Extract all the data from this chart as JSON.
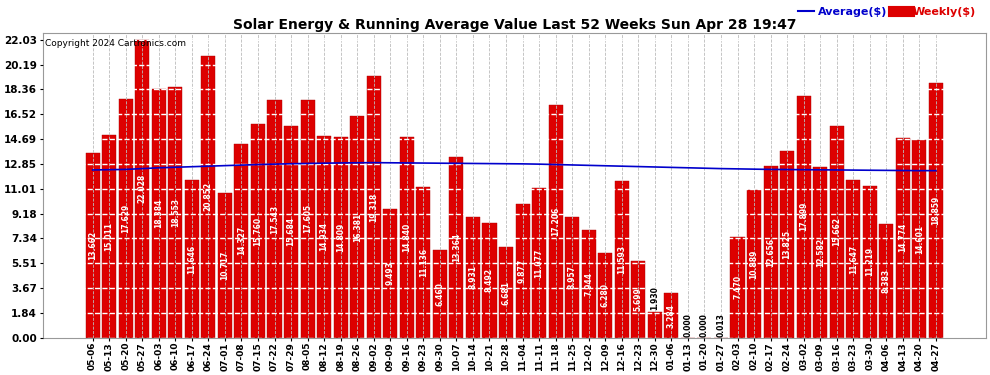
{
  "title": "Solar Energy & Running Average Value Last 52 Weeks Sun Apr 28 19:47",
  "copyright": "Copyright 2024 Cartronics.com",
  "legend_avg": "Average($)",
  "legend_weekly": "Weekly($)",
  "bar_color": "#dd0000",
  "avg_line_color": "#0000cc",
  "background_color": "#ffffff",
  "grid_color": "#bbbbbb",
  "yticks": [
    0.0,
    1.84,
    3.67,
    5.51,
    7.34,
    9.18,
    11.01,
    12.85,
    14.69,
    16.52,
    18.36,
    20.19,
    22.03
  ],
  "ylim": [
    0,
    22.5
  ],
  "dates": [
    "05-06",
    "05-13",
    "05-20",
    "05-27",
    "06-03",
    "06-10",
    "06-17",
    "06-24",
    "07-01",
    "07-08",
    "07-15",
    "07-22",
    "07-29",
    "08-05",
    "08-12",
    "08-19",
    "08-26",
    "09-02",
    "09-09",
    "09-16",
    "09-23",
    "09-30",
    "10-07",
    "10-14",
    "10-21",
    "10-28",
    "11-04",
    "11-11",
    "11-18",
    "11-25",
    "12-02",
    "12-09",
    "12-16",
    "12-23",
    "12-30",
    "01-06",
    "01-13",
    "01-20",
    "01-27",
    "02-03",
    "02-10",
    "02-17",
    "02-24",
    "03-02",
    "03-09",
    "03-16",
    "03-23",
    "03-30",
    "04-06",
    "04-13",
    "04-20",
    "04-27"
  ],
  "weekly_values": [
    13.662,
    15.011,
    17.629,
    22.028,
    18.384,
    18.553,
    11.646,
    20.852,
    10.717,
    14.327,
    15.76,
    17.543,
    15.684,
    17.605,
    14.934,
    14.809,
    16.381,
    19.318,
    9.493,
    14.84,
    11.136,
    6.46,
    13.364,
    8.931,
    8.492,
    6.681,
    9.877,
    11.077,
    17.206,
    8.957,
    7.944,
    6.28,
    11.593,
    5.699,
    1.93,
    3.284,
    0.0,
    0.0,
    0.013,
    7.47,
    10.889,
    12.656,
    13.825,
    17.899,
    12.582,
    15.662,
    11.647,
    11.219,
    8.383,
    14.774,
    14.601,
    18.859
  ],
  "avg_values": [
    12.4,
    12.42,
    12.44,
    12.5,
    12.56,
    12.6,
    12.64,
    12.68,
    12.72,
    12.76,
    12.8,
    12.83,
    12.86,
    12.88,
    12.9,
    12.92,
    12.93,
    12.94,
    12.93,
    12.92,
    12.91,
    12.9,
    12.89,
    12.88,
    12.87,
    12.86,
    12.85,
    12.83,
    12.8,
    12.77,
    12.74,
    12.71,
    12.68,
    12.65,
    12.62,
    12.59,
    12.56,
    12.53,
    12.5,
    12.48,
    12.46,
    12.44,
    12.43,
    12.42,
    12.41,
    12.4,
    12.39,
    12.38,
    12.37,
    12.36,
    12.35,
    12.35
  ]
}
